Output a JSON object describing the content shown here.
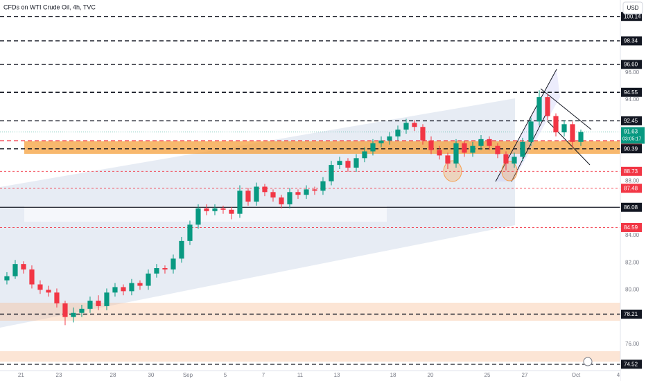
{
  "chart_data": {
    "type": "candlestick",
    "title": "CFDs on WTI Crude Oil, 4h, TVC",
    "currency": "USD",
    "up_color": "#089981",
    "down_color": "#f23645",
    "xlim": [
      -0.83,
      73.75
    ],
    "ylim": [
      74.05,
      101.35
    ],
    "xticks": [
      {
        "value": 1.7,
        "label": "21"
      },
      {
        "value": 6.25,
        "label": "23"
      },
      {
        "value": 12.75,
        "label": "28"
      },
      {
        "value": 17.33,
        "label": "30"
      },
      {
        "value": 21.75,
        "label": "Sep"
      },
      {
        "value": 26.25,
        "label": "5"
      },
      {
        "value": 30.83,
        "label": "7"
      },
      {
        "value": 35.25,
        "label": "11"
      },
      {
        "value": 39.67,
        "label": "13"
      },
      {
        "value": 46.42,
        "label": "18"
      },
      {
        "value": 50.92,
        "label": "20"
      },
      {
        "value": 57.75,
        "label": "25"
      },
      {
        "value": 62.25,
        "label": "27"
      },
      {
        "value": 68.42,
        "label": "Oct"
      },
      {
        "value": 73.5,
        "label": "4"
      }
    ],
    "yticks": [
      {
        "value": 96,
        "label": "96.00"
      },
      {
        "value": 94,
        "label": "94.00"
      },
      {
        "value": 88,
        "label": "88.00"
      },
      {
        "value": 84,
        "label": "84.00"
      },
      {
        "value": 82,
        "label": "82.00"
      },
      {
        "value": 80,
        "label": "80.00"
      },
      {
        "value": 76,
        "label": "76.00"
      }
    ],
    "open": [
      80.7,
      81.0,
      81.9,
      81.5,
      80.4,
      80.0,
      79.8,
      79.0,
      78.0,
      78.3,
      78.6,
      79.2,
      78.8,
      79.8,
      80.2,
      79.9,
      80.5,
      80.3,
      81.2,
      81.6,
      81.5,
      82.3,
      83.6,
      84.8,
      86.0,
      85.8,
      86.0,
      85.9,
      85.6,
      87.3,
      86.5,
      87.6,
      87.2,
      86.8,
      86.3,
      87.2,
      87.0,
      87.4,
      87.3,
      88.0,
      89.2,
      89.5,
      89.0,
      89.7,
      90.2,
      90.8,
      91.0,
      91.3,
      91.8,
      92.3,
      92.0,
      91.0,
      90.3,
      89.9,
      89.3,
      90.8,
      90.1,
      90.6,
      91.1,
      90.6,
      90.0,
      89.3,
      89.8,
      90.9,
      92.4,
      94.2,
      92.8,
      91.6,
      92.2,
      90.9
    ],
    "high": [
      81.3,
      82.2,
      82.1,
      81.8,
      80.7,
      80.3,
      80.1,
      79.2,
      78.7,
      78.9,
      79.5,
      79.6,
      80.1,
      80.5,
      80.4,
      80.8,
      80.7,
      81.5,
      81.9,
      81.8,
      82.6,
      83.9,
      85.1,
      86.3,
      86.3,
      86.3,
      86.2,
      86.1,
      87.7,
      87.5,
      87.9,
      87.8,
      87.4,
      87.0,
      87.5,
      87.4,
      87.7,
      87.6,
      88.3,
      89.5,
      89.8,
      89.7,
      90.0,
      90.5,
      91.1,
      91.3,
      91.6,
      92.1,
      92.6,
      92.5,
      92.2,
      91.3,
      90.6,
      90.1,
      91.1,
      91.0,
      90.9,
      91.4,
      91.3,
      90.8,
      90.2,
      90.1,
      91.2,
      92.7,
      94.7,
      94.4,
      93.0,
      92.5,
      92.4,
      91.8
    ],
    "low": [
      80.4,
      80.8,
      81.2,
      80.1,
      79.7,
      79.5,
      78.7,
      77.4,
      77.6,
      78.0,
      78.3,
      78.5,
      78.5,
      79.5,
      79.6,
      79.6,
      80.0,
      80.0,
      80.9,
      81.2,
      81.2,
      82.0,
      83.3,
      84.5,
      85.5,
      85.5,
      85.6,
      85.2,
      85.3,
      86.2,
      86.2,
      86.9,
      86.5,
      86.0,
      86.0,
      86.7,
      86.7,
      87.0,
      87.0,
      87.7,
      88.9,
      88.7,
      88.7,
      89.4,
      89.9,
      90.5,
      90.7,
      91.0,
      91.5,
      91.7,
      90.7,
      90.0,
      89.6,
      88.9,
      89.0,
      89.8,
      89.8,
      90.3,
      90.3,
      89.7,
      88.8,
      89.0,
      89.5,
      90.6,
      92.1,
      92.5,
      91.3,
      91.3,
      90.5,
      90.6
    ],
    "close": [
      81.0,
      81.9,
      81.5,
      80.4,
      80.0,
      79.8,
      79.0,
      78.0,
      78.3,
      78.6,
      79.2,
      78.8,
      79.8,
      80.2,
      79.9,
      80.5,
      80.3,
      81.2,
      81.6,
      81.5,
      82.3,
      83.6,
      84.8,
      86.0,
      85.8,
      86.0,
      85.9,
      85.6,
      87.3,
      86.5,
      87.6,
      87.2,
      86.8,
      86.3,
      87.2,
      87.0,
      87.4,
      87.3,
      88.0,
      89.2,
      89.5,
      89.0,
      89.7,
      90.2,
      90.8,
      91.0,
      91.3,
      91.8,
      92.3,
      92.0,
      91.0,
      90.3,
      89.9,
      89.3,
      90.8,
      90.1,
      90.6,
      91.1,
      90.6,
      90.0,
      89.3,
      89.8,
      90.9,
      92.4,
      94.2,
      92.8,
      91.6,
      92.2,
      90.9,
      91.63
    ],
    "levels": [
      {
        "value": 100.14,
        "label": "100.14",
        "color": "#131722",
        "style": "dashed"
      },
      {
        "value": 98.34,
        "label": "98.34",
        "color": "#131722",
        "style": "dashed"
      },
      {
        "value": 96.6,
        "label": "96.60",
        "color": "#131722",
        "style": "dashed"
      },
      {
        "value": 94.55,
        "label": "94.55",
        "color": "#131722",
        "style": "dashed"
      },
      {
        "value": 92.45,
        "label": "92.45",
        "color": "#131722",
        "style": "dashed"
      },
      {
        "value": 90.98,
        "label": "90.98",
        "color": "#f23645",
        "style": "dashed"
      },
      {
        "value": 90.39,
        "label": "90.39",
        "color": "#131722",
        "style": "dashed"
      },
      {
        "value": 88.73,
        "label": "88.73",
        "color": "#f23645",
        "style": "dotted"
      },
      {
        "value": 87.48,
        "label": "87.48",
        "color": "#f23645",
        "style": "dotted"
      },
      {
        "value": 86.08,
        "label": "86.08",
        "color": "#131722",
        "style": "solid"
      },
      {
        "value": 84.59,
        "label": "84.59",
        "color": "#f23645",
        "style": "dotted"
      },
      {
        "value": 78.21,
        "label": "78.21",
        "color": "#131722",
        "style": "dashed"
      },
      {
        "value": 74.52,
        "label": "74.52",
        "color": "#131722",
        "style": "dashed"
      }
    ],
    "current_price": {
      "value": 91.63,
      "countdown": "03:05:17",
      "color": "#089981"
    }
  }
}
